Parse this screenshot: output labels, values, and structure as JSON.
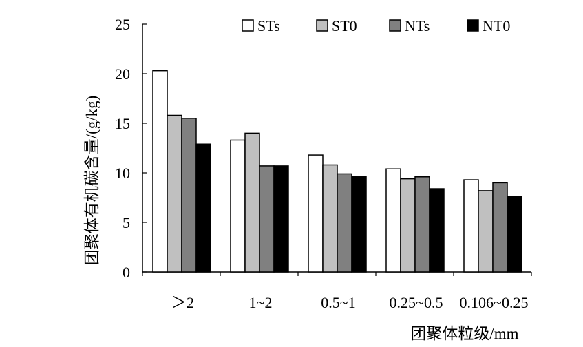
{
  "chart_data": {
    "type": "bar",
    "title": "",
    "xlabel": "团聚体粒级/mm",
    "ylabel": "团聚体有机碳含量/(g/kg)",
    "ylim": [
      0,
      25
    ],
    "yticks": [
      0,
      5,
      10,
      15,
      20,
      25
    ],
    "ytick_labels": [
      "0",
      "5",
      "10",
      "15",
      "20",
      "25"
    ],
    "grid": false,
    "legend_position": "top",
    "categories": [
      "＞2",
      "1~2",
      "0.5~1",
      "0.25~0.5",
      "0.106~0.25"
    ],
    "series": [
      {
        "name": "STs",
        "color": "#ffffff",
        "values": [
          20.3,
          13.3,
          11.8,
          10.4,
          9.3
        ]
      },
      {
        "name": "ST0",
        "color": "#c0c0c0",
        "values": [
          15.8,
          14.0,
          10.8,
          9.4,
          8.2
        ]
      },
      {
        "name": "NTs",
        "color": "#808080",
        "values": [
          15.5,
          10.7,
          9.9,
          9.6,
          9.0
        ]
      },
      {
        "name": "NT0",
        "color": "#000000",
        "values": [
          12.9,
          10.7,
          9.6,
          8.4,
          7.6
        ]
      }
    ]
  }
}
